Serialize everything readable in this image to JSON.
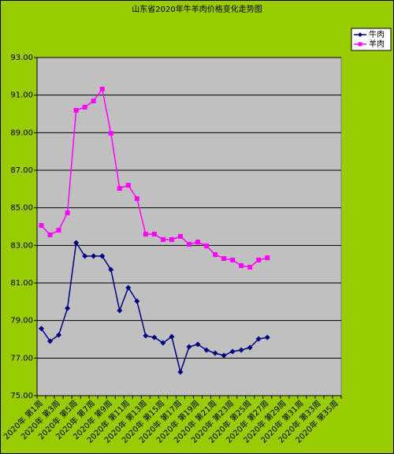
{
  "chart_data": {
    "type": "line",
    "title": "山东省2020年牛羊肉价格变化走势图",
    "categories": [
      "2020年 第1周",
      null,
      "2020年 第3周",
      null,
      "2020年 第5周",
      null,
      "2020年 第7周",
      null,
      "2020年 第9周",
      null,
      "2020年 第11周",
      null,
      "2020年 第13周",
      null,
      "2020年 第15周",
      null,
      "2020年 第17周",
      null,
      "2020年 第19周",
      null,
      "2020年 第21周",
      null,
      "2020年 第23周",
      null,
      "2020年 第25周",
      null,
      "2020年 第27周",
      null,
      "2020年 第29周",
      null,
      "2020年 第31周",
      null,
      "2020年 第33周",
      null,
      "2020年 第35周"
    ],
    "series": [
      {
        "name": "牛肉",
        "color": "#000080",
        "marker": "diamond",
        "values": [
          78.57,
          77.9,
          78.23,
          79.65,
          83.14,
          82.43,
          82.43,
          82.43,
          81.71,
          79.53,
          80.75,
          80.03,
          78.19,
          78.1,
          77.81,
          78.14,
          76.26,
          77.6,
          77.73,
          77.43,
          77.26,
          77.14,
          77.35,
          77.43,
          77.56,
          78.02,
          78.1,
          null,
          null,
          null,
          null,
          null,
          null,
          null,
          null
        ]
      },
      {
        "name": "羊肉",
        "color": "#ff00ff",
        "marker": "square",
        "values": [
          84.06,
          83.56,
          83.81,
          84.73,
          90.19,
          90.36,
          90.69,
          91.32,
          88.97,
          86.03,
          86.2,
          85.49,
          83.6,
          83.6,
          83.31,
          83.31,
          83.48,
          83.06,
          83.18,
          82.97,
          82.51,
          82.3,
          82.22,
          81.92,
          81.84,
          82.22,
          82.34,
          null,
          null,
          null,
          null,
          null,
          null,
          null,
          null
        ]
      }
    ],
    "ylim": [
      75,
      93
    ],
    "yticks": [
      {
        "value": 75,
        "label": "75.00"
      },
      {
        "value": 77,
        "label": "77.00"
      },
      {
        "value": 79,
        "label": "79.00"
      },
      {
        "value": 81,
        "label": "81.00"
      },
      {
        "value": 83,
        "label": "83.00"
      },
      {
        "value": 85,
        "label": "85.00"
      },
      {
        "value": 87,
        "label": "87.00"
      },
      {
        "value": 89,
        "label": "89.00"
      },
      {
        "value": 91,
        "label": "91.00"
      },
      {
        "value": 93,
        "label": "93.00"
      }
    ],
    "grid": true,
    "legend": "top-right"
  }
}
